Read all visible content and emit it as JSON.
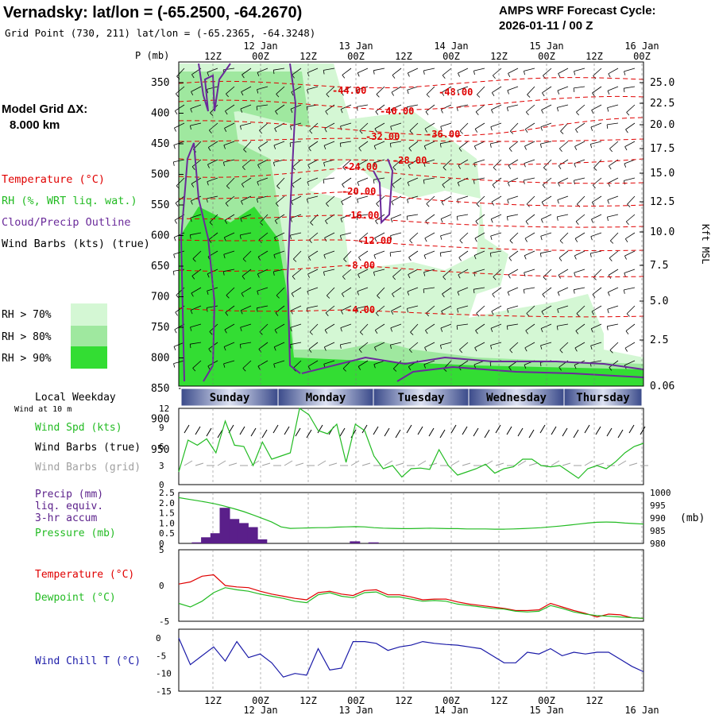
{
  "header": {
    "station_title": "Vernadsky:  lat/lon = (-65.2500, -64.2670)",
    "grid_point": "Grid Point (730, 211) lat/lon = (-65.2365, -64.3248)",
    "cycle_title": "AMPS WRF Forecast Cycle:",
    "cycle_value": "2026-01-11 / 00  Z"
  },
  "model_grid": {
    "label": "Model Grid ΔX:",
    "value": "8.000 km"
  },
  "legend": {
    "temperature": "Temperature (°C)",
    "rh": "RH (%, WRT liq. wat.)",
    "cloud": "Cloud/Precip Outline",
    "wind": "Wind Barbs (kts) (true)",
    "rh70": "RH > 70%",
    "rh80": "RH > 80%",
    "rh90": "RH > 90%"
  },
  "colors": {
    "temperature": "#e00000",
    "rh": "#22bb22",
    "cloud": "#6a2a9a",
    "rh70": "#d4f7d4",
    "rh80": "#9fe89f",
    "rh90": "#33dd33",
    "wind_speed": "#22bb22",
    "wind_grid": "#a0a0a0",
    "precip": "#5a1f8a",
    "dewpoint": "#22bb22",
    "wind_chill": "#1a1aa8",
    "day_bar": "#3a4a8a"
  },
  "time_axis": {
    "top_labels": [
      "12Z",
      "00Z",
      "12Z",
      "00Z",
      "12Z",
      "00Z",
      "12Z",
      "00Z",
      "12Z",
      "00Z"
    ],
    "date_labels": [
      "12 Jan",
      "13 Jan",
      "14 Jan",
      "15 Jan",
      "16 Jan"
    ],
    "bottom_labels": [
      "12Z",
      "00Z",
      "12Z",
      "00Z",
      "12Z",
      "00Z",
      "12Z",
      "00Z",
      "12Z"
    ],
    "bottom_dates": [
      "12 Jan",
      "13 Jan",
      "14 Jan",
      "15 Jan",
      "16 Jan"
    ]
  },
  "weekday": {
    "title": "Local Weekday",
    "subtitle": "Wind at 10 m",
    "days": [
      "Sunday",
      "Monday",
      "Tuesday",
      "Wednesday",
      "Thursday"
    ]
  },
  "chart_data": [
    {
      "type": "contour",
      "name": "cross-section",
      "ylabel": "P (mb)",
      "y2label": "Kft MSL",
      "pressure_ticks": [
        "350",
        "400",
        "450",
        "500",
        "550",
        "600",
        "650",
        "700",
        "750",
        "800",
        "850",
        "900",
        "950"
      ],
      "height_ticks": [
        "25.0",
        "22.5",
        "20.0",
        "17.5",
        "15.0",
        "12.5",
        "10.0",
        "7.5",
        "5.0",
        "2.5",
        "0.06"
      ],
      "temperature_labels": [
        "-44.00",
        "-48.00",
        "-40.00",
        "-36.00",
        "-32.00",
        "-28.00",
        "-24.00",
        "-20.00",
        "-16.00",
        "-12.00",
        "-8.00",
        "-4.00"
      ]
    },
    {
      "type": "line",
      "name": "wind",
      "labels": [
        "Wind Spd (kts)",
        "Wind Barbs (true)",
        "Wind Barbs (grid)"
      ],
      "yticks": [
        "12",
        "9",
        "6",
        "3",
        "0"
      ],
      "ylim": [
        0,
        12
      ],
      "speed": [
        2.0,
        7.0,
        6.2,
        7.2,
        5.0,
        10.0,
        6.2,
        6.0,
        3.0,
        6.7,
        4.0,
        4.5,
        5.0,
        12.0,
        11.0,
        8.5,
        8.0,
        9.5,
        3.5,
        9.5,
        8.5,
        4.5,
        2.5,
        3.0,
        1.2,
        2.5,
        2.6,
        2.4,
        5.5,
        3.0,
        1.5,
        2.0,
        2.5,
        3.2,
        1.8,
        2.5,
        2.8,
        4.0,
        4.0,
        3.0,
        2.8,
        3.0,
        2.0,
        1.0,
        2.5,
        3.0,
        2.5,
        3.6,
        5.0,
        6.0,
        6.5
      ]
    },
    {
      "type": "bar",
      "name": "precip-pressure",
      "labels": [
        "Precip (mm)",
        "liq. equiv.",
        "3-hr accum",
        "Pressure (mb)"
      ],
      "yticks": [
        "2.5",
        "2.0",
        "1.5",
        "1.0",
        "0.5",
        "0"
      ],
      "y2ticks": [
        "1000",
        "995",
        "990",
        "985",
        "980"
      ],
      "y2unit": "(mb)",
      "ylim": [
        0,
        2.5
      ],
      "y2lim": [
        980,
        1000
      ],
      "precip": [
        0,
        0,
        0.05,
        0.3,
        0.5,
        1.75,
        1.2,
        1.0,
        0.8,
        0.2,
        0,
        0,
        0,
        0,
        0,
        0,
        0,
        0,
        0,
        0.1,
        0,
        0.05,
        0,
        0,
        0,
        0,
        0,
        0,
        0,
        0,
        0,
        0,
        0,
        0,
        0,
        0,
        0,
        0,
        0,
        0,
        0,
        0,
        0,
        0,
        0,
        0,
        0,
        0,
        0,
        0,
        0
      ],
      "pressure": [
        998.0,
        997.4,
        996.8,
        996.2,
        995.5,
        994.6,
        993.6,
        992.5,
        991.2,
        989.8,
        988.4,
        986.5,
        985.9,
        986.0,
        986.1,
        986.2,
        986.2,
        986.4,
        986.5,
        986.6,
        986.5,
        986.2,
        986.0,
        985.9,
        985.8,
        985.8,
        985.9,
        986.0,
        985.9,
        985.8,
        985.8,
        985.7,
        985.7,
        985.7,
        985.6,
        985.6,
        985.7,
        985.8,
        986.0,
        986.2,
        986.5,
        986.8,
        987.2,
        987.6,
        988.0,
        988.3,
        988.4,
        988.3,
        988.0,
        987.8,
        987.6
      ]
    },
    {
      "type": "line",
      "name": "temperature-dewpoint",
      "labels": [
        "Temperature (°C)",
        "Dewpoint (°C)"
      ],
      "yticks": [
        "5",
        "0",
        "-5"
      ],
      "ylim": [
        -5,
        5
      ],
      "temperature": [
        0.2,
        0.5,
        1.3,
        1.5,
        0.0,
        -0.2,
        -0.3,
        -0.8,
        -1.2,
        -1.5,
        -1.8,
        -2.0,
        -1.0,
        -0.8,
        -1.2,
        -1.4,
        -0.7,
        -0.6,
        -1.3,
        -1.3,
        -1.6,
        -2.0,
        -1.9,
        -1.9,
        -2.3,
        -2.6,
        -2.8,
        -3.0,
        -3.2,
        -3.5,
        -3.5,
        -3.4,
        -2.5,
        -3.0,
        -3.5,
        -3.9,
        -4.4,
        -4.0,
        -4.1,
        -4.5,
        -4.6
      ],
      "dewpoint": [
        -2.5,
        -3.0,
        -2.2,
        -1.0,
        -0.3,
        -0.6,
        -0.8,
        -1.2,
        -1.5,
        -1.8,
        -2.2,
        -2.4,
        -1.3,
        -1.0,
        -1.5,
        -1.7,
        -1.0,
        -0.9,
        -1.6,
        -1.6,
        -1.9,
        -2.2,
        -2.1,
        -2.2,
        -2.6,
        -2.8,
        -3.0,
        -3.2,
        -3.3,
        -3.6,
        -3.7,
        -3.6,
        -2.8,
        -3.2,
        -3.7,
        -4.0,
        -4.2,
        -4.3,
        -4.4,
        -4.5,
        -4.6
      ]
    },
    {
      "type": "line",
      "name": "wind-chill",
      "labels": [
        "Wind Chill T (°C)"
      ],
      "yticks": [
        "0",
        "-5",
        "-10",
        "-15"
      ],
      "ylim": [
        -15,
        2.5
      ],
      "wind_chill": [
        0.0,
        -7.5,
        -5.0,
        -2.5,
        -6.5,
        -1.0,
        -5.5,
        -4.5,
        -7.0,
        -11.0,
        -10.0,
        -10.5,
        -3.0,
        -9.0,
        -8.5,
        -1.0,
        -1.0,
        -1.5,
        -3.5,
        -2.5,
        -2.0,
        -1.0,
        -1.5,
        -1.8,
        -2.0,
        -2.5,
        -3.0,
        -5.0,
        -7.0,
        -7.0,
        -4.0,
        -4.5,
        -3.0,
        -5.0,
        -4.0,
        -4.5,
        -4.0,
        -4.0,
        -6.0,
        -8.0,
        -9.5
      ]
    }
  ]
}
